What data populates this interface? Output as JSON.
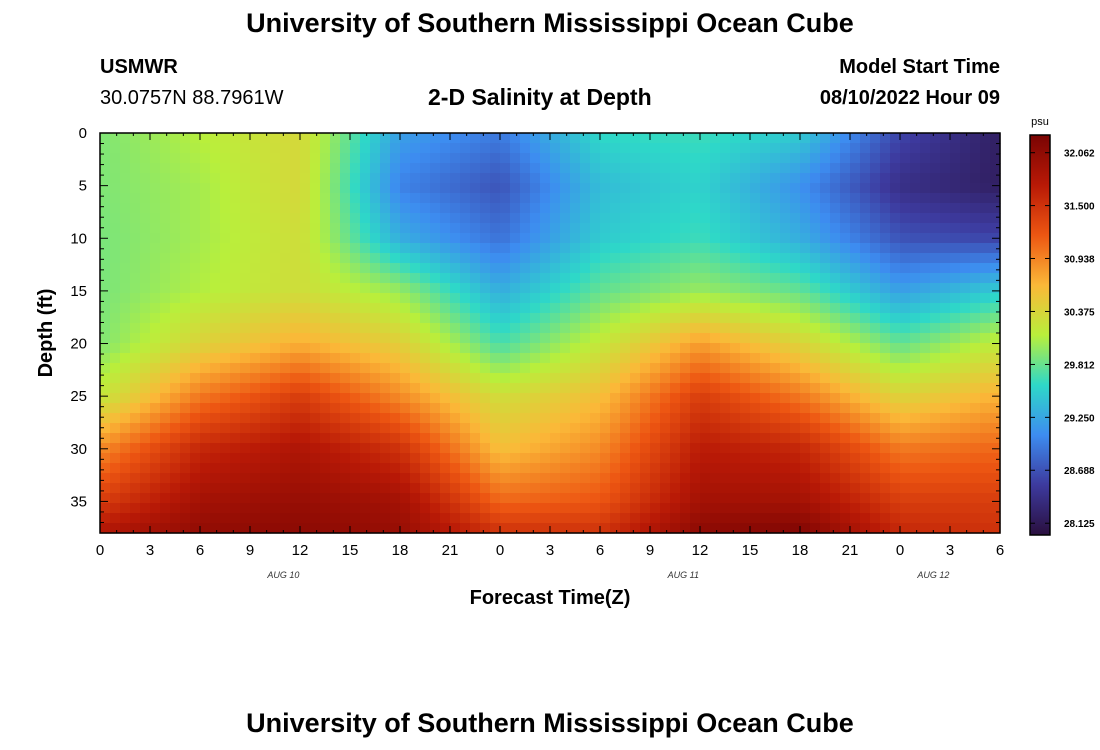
{
  "page": {
    "title_top": "University of Southern Mississippi Ocean Cube",
    "title_bottom": "University of Southern Mississippi Ocean Cube",
    "station_id": "USMWR",
    "station_coords": "30.0757N  88.7961W",
    "subtitle": "2-D Salinity at Depth",
    "model_start_label": "Model Start Time",
    "model_start_value": "08/10/2022 Hour 09"
  },
  "colors": {
    "scale": [
      "#2a0f3e",
      "#3d3a9e",
      "#3d8cf0",
      "#2ed8c8",
      "#b9ef3b",
      "#fbb838",
      "#ed5612",
      "#b81906",
      "#7a0403"
    ]
  },
  "chart_data": {
    "type": "heatmap",
    "xlabel": "Forecast Time(Z)",
    "ylabel": "Depth (ft)",
    "x_tick_labels": [
      "0",
      "3",
      "6",
      "9",
      "12",
      "15",
      "18",
      "21",
      "0",
      "3",
      "6",
      "9",
      "12",
      "15",
      "18",
      "21",
      "0",
      "3",
      "6"
    ],
    "x_range_hours": [
      0,
      54
    ],
    "date_labels": [
      {
        "text": "AUG 10",
        "hour": 11
      },
      {
        "text": "AUG 11",
        "hour": 35
      },
      {
        "text": "AUG 12",
        "hour": 50
      }
    ],
    "y_ticks": [
      0,
      5,
      10,
      15,
      20,
      25,
      30,
      35
    ],
    "y_range": [
      0,
      38
    ],
    "y_inverted": true,
    "colorbar": {
      "unit": "psu",
      "min": 28.0,
      "max": 32.25,
      "ticks": [
        32.062,
        31.5,
        30.938,
        30.375,
        29.812,
        29.25,
        28.688,
        28.125
      ],
      "tick_labels": [
        "32.062",
        "31.500",
        "30.938",
        "30.375",
        "29.812",
        "29.250",
        "28.688",
        "28.125"
      ]
    },
    "grid": {
      "hours": [
        0,
        6,
        12,
        18,
        24,
        30,
        36,
        42,
        48,
        54
      ],
      "depths": [
        0,
        5,
        10,
        15,
        20,
        25,
        30,
        35,
        38
      ],
      "values": [
        [
          29.9,
          30.12,
          30.35,
          29.2,
          28.95,
          29.6,
          29.65,
          29.5,
          28.6,
          28.2
        ],
        [
          29.9,
          30.05,
          30.35,
          29.0,
          28.7,
          29.4,
          29.55,
          29.1,
          28.4,
          28.2
        ],
        [
          29.88,
          30.05,
          30.3,
          29.3,
          28.9,
          29.5,
          29.65,
          29.3,
          28.7,
          28.6
        ],
        [
          29.88,
          30.1,
          30.3,
          30.0,
          29.3,
          29.8,
          30.0,
          29.8,
          29.2,
          29.5
        ],
        [
          29.9,
          30.4,
          30.7,
          30.45,
          29.7,
          30.2,
          30.8,
          30.4,
          29.8,
          30.2
        ],
        [
          30.2,
          31.0,
          31.4,
          30.9,
          30.3,
          30.6,
          31.4,
          31.0,
          30.4,
          30.7
        ],
        [
          30.9,
          31.6,
          31.8,
          31.5,
          30.6,
          30.9,
          31.7,
          31.6,
          31.0,
          31.1
        ],
        [
          31.4,
          31.9,
          32.0,
          31.9,
          31.1,
          31.2,
          31.9,
          31.9,
          31.4,
          31.4
        ],
        [
          31.8,
          32.05,
          32.1,
          32.0,
          31.5,
          31.5,
          32.1,
          32.2,
          31.6,
          31.5
        ]
      ]
    }
  }
}
